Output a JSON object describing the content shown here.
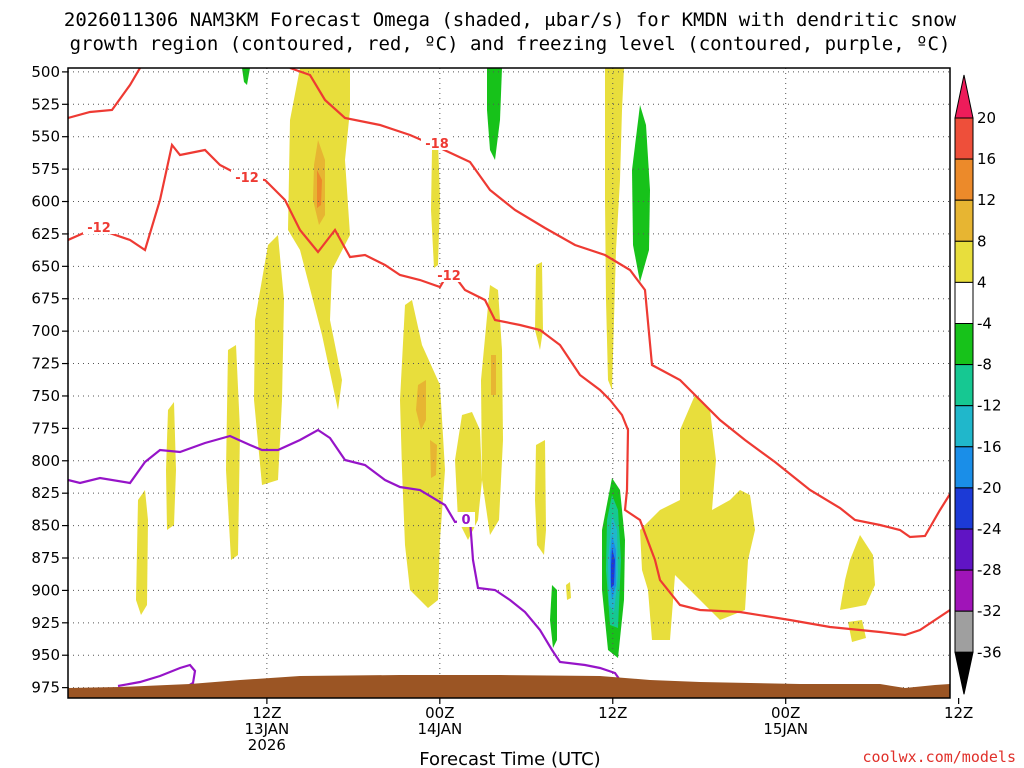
{
  "chart_data": {
    "type": "heatmap",
    "title_line1": "2026011306 NAM3KM Forecast Omega (shaded, μbar/s) for KMDN with dendritic snow",
    "title_line2": "growth region (contoured, red, ºC) and freezing level (contoured, purple, ºC)",
    "xlabel": "Forecast Time (UTC)",
    "credit": "coolwx.com/models",
    "y_axis": {
      "ticks": [
        500,
        525,
        550,
        575,
        600,
        625,
        650,
        675,
        700,
        725,
        750,
        775,
        800,
        825,
        850,
        875,
        900,
        925,
        950,
        975
      ],
      "range": [
        497,
        983
      ]
    },
    "x_axis": {
      "range_hours": [
        -5.5,
        45.5
      ],
      "ticks": [
        {
          "hour": 6,
          "lines": [
            "12Z",
            "13JAN",
            "2026"
          ]
        },
        {
          "hour": 16,
          "lines": [
            "00Z",
            "14JAN"
          ]
        },
        {
          "hour": 26,
          "lines": [
            "12Z"
          ]
        },
        {
          "hour": 36,
          "lines": [
            "00Z",
            "15JAN"
          ]
        },
        {
          "hour": 46,
          "lines": [
            "12Z"
          ]
        }
      ]
    },
    "colorbar": {
      "labels": [
        "20",
        "16",
        "12",
        "8",
        "4",
        "-4",
        "-8",
        "-12",
        "-16",
        "-20",
        "-24",
        "-28",
        "-32",
        "-36"
      ],
      "colors": [
        "#ee1c5a",
        "#ee4f3a",
        "#ec8a2a",
        "#e7b532",
        "#e8de3c",
        "#ffffff",
        "#17c21a",
        "#16c892",
        "#20b7cb",
        "#1a8ee8",
        "#1c3ad6",
        "#6014c4",
        "#a014b8",
        "#9f9f9f",
        "#000000"
      ]
    },
    "contour_labels": {
      "red": [
        "-18",
        "-12",
        "-12",
        "-12"
      ],
      "purple": [
        "0"
      ]
    }
  }
}
